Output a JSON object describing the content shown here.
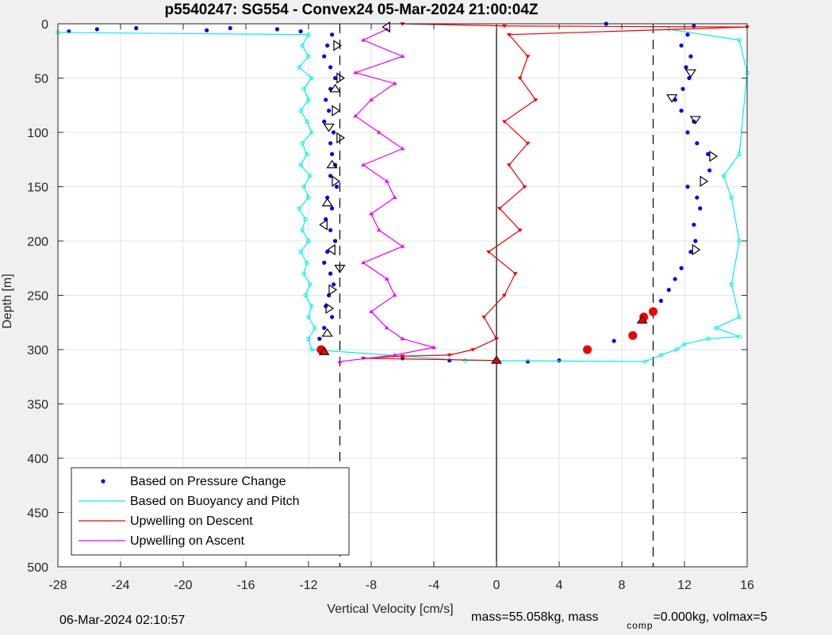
{
  "chart_data": {
    "type": "scatter",
    "title": "p5540247: SG554 - Convex24 05-Mar-2024 21:00:04Z",
    "xlabel": "Vertical Velocity [cm/s]",
    "ylabel": "Depth [m]",
    "xlim": [
      -28,
      16
    ],
    "ylim": [
      0,
      500
    ],
    "y_reversed": true,
    "grid": true,
    "xticks": [
      -28,
      -24,
      -20,
      -16,
      -12,
      -8,
      -4,
      0,
      4,
      8,
      12,
      16
    ],
    "yticks": [
      0,
      50,
      100,
      150,
      200,
      250,
      300,
      350,
      400,
      450,
      500
    ],
    "legend_position": "bottom-left",
    "reference_lines": {
      "solid_x": 0,
      "dashed_x": [
        -10,
        10
      ]
    },
    "series": [
      {
        "name": "Based on Pressure Change",
        "style": "dots",
        "color": "#0000ee",
        "points": [
          [
            -27.3,
            7
          ],
          [
            -25.5,
            5
          ],
          [
            -23,
            4
          ],
          [
            -18.5,
            6
          ],
          [
            -17,
            4
          ],
          [
            -14,
            5
          ],
          [
            -12.5,
            7
          ],
          [
            -10.5,
            10
          ],
          [
            -10.8,
            20
          ],
          [
            -11.0,
            30
          ],
          [
            -10.6,
            40
          ],
          [
            -10.3,
            50
          ],
          [
            -10.6,
            60
          ],
          [
            -10.9,
            70
          ],
          [
            -10.7,
            80
          ],
          [
            -11.0,
            90
          ],
          [
            -10.4,
            100
          ],
          [
            -10.6,
            110
          ],
          [
            -10.5,
            120
          ],
          [
            -10.3,
            130
          ],
          [
            -10.6,
            140
          ],
          [
            -10.2,
            150
          ],
          [
            -10.8,
            160
          ],
          [
            -10.5,
            170
          ],
          [
            -10.9,
            180
          ],
          [
            -10.6,
            190
          ],
          [
            -10.3,
            200
          ],
          [
            -10.8,
            210
          ],
          [
            -11.0,
            220
          ],
          [
            -10.6,
            230
          ],
          [
            -10.4,
            240
          ],
          [
            -10.7,
            250
          ],
          [
            -10.9,
            260
          ],
          [
            -10.5,
            270
          ],
          [
            -11.0,
            280
          ],
          [
            -11.3,
            290
          ],
          [
            -11.0,
            300
          ],
          [
            -6.0,
            308
          ],
          [
            -3.0,
            310
          ],
          [
            0.0,
            311
          ],
          [
            2.0,
            311
          ],
          [
            4.0,
            310
          ],
          [
            5.8,
            300
          ],
          [
            7.5,
            292
          ],
          [
            8.7,
            285
          ],
          [
            9.3,
            272
          ],
          [
            10.0,
            265
          ],
          [
            10.5,
            255
          ],
          [
            11.0,
            245
          ],
          [
            11.4,
            235
          ],
          [
            11.8,
            225
          ],
          [
            12.4,
            210
          ],
          [
            12.7,
            200
          ],
          [
            12.6,
            185
          ],
          [
            13.0,
            170
          ],
          [
            12.8,
            160
          ],
          [
            12.2,
            150
          ],
          [
            13.6,
            135
          ],
          [
            13.5,
            120
          ],
          [
            12.8,
            110
          ],
          [
            12.2,
            100
          ],
          [
            12.6,
            90
          ],
          [
            11.8,
            80
          ],
          [
            11.4,
            70
          ],
          [
            11.9,
            60
          ],
          [
            12.3,
            50
          ],
          [
            12.1,
            40
          ],
          [
            12.4,
            30
          ],
          [
            11.8,
            20
          ],
          [
            12.2,
            10
          ],
          [
            12.6,
            2
          ],
          [
            7.0,
            0
          ]
        ]
      },
      {
        "name": "Based on Buoyancy and Pitch",
        "style": "line-with-dots",
        "color": "#00eeee",
        "points": [
          [
            -28,
            8
          ],
          [
            -12.0,
            10
          ],
          [
            -12.4,
            20
          ],
          [
            -12.0,
            30
          ],
          [
            -12.6,
            40
          ],
          [
            -11.8,
            50
          ],
          [
            -12.3,
            60
          ],
          [
            -12.0,
            70
          ],
          [
            -12.5,
            80
          ],
          [
            -12.1,
            90
          ],
          [
            -11.8,
            100
          ],
          [
            -12.4,
            110
          ],
          [
            -12.1,
            120
          ],
          [
            -12.5,
            130
          ],
          [
            -11.9,
            140
          ],
          [
            -12.3,
            150
          ],
          [
            -12.0,
            160
          ],
          [
            -12.6,
            170
          ],
          [
            -12.2,
            180
          ],
          [
            -12.4,
            190
          ],
          [
            -12.0,
            200
          ],
          [
            -12.5,
            210
          ],
          [
            -12.1,
            220
          ],
          [
            -12.3,
            230
          ],
          [
            -11.9,
            240
          ],
          [
            -12.2,
            250
          ],
          [
            -11.8,
            260
          ],
          [
            -12.0,
            270
          ],
          [
            -11.6,
            280
          ],
          [
            -12.0,
            290
          ],
          [
            -11.8,
            300
          ],
          [
            -2.0,
            310
          ],
          [
            9.5,
            311
          ],
          [
            10.5,
            305
          ],
          [
            11.5,
            300
          ],
          [
            12.0,
            295
          ],
          [
            13.5,
            290
          ],
          [
            15.5,
            288
          ],
          [
            14.0,
            280
          ],
          [
            15.5,
            270
          ],
          [
            15.0,
            240
          ],
          [
            15.5,
            200
          ],
          [
            15.0,
            160
          ],
          [
            14.5,
            140
          ],
          [
            15.5,
            120
          ],
          [
            16.0,
            45
          ],
          [
            15.5,
            15
          ],
          [
            11.0,
            5
          ]
        ]
      },
      {
        "name": "Upwelling on Descent",
        "style": "line-with-down-triangles",
        "color": "#ee0000",
        "points": [
          [
            -6.0,
            0
          ],
          [
            0.5,
            2
          ],
          [
            16.0,
            3
          ],
          [
            0.8,
            10
          ],
          [
            2.0,
            30
          ],
          [
            1.5,
            50
          ],
          [
            2.5,
            70
          ],
          [
            0.5,
            90
          ],
          [
            2.0,
            110
          ],
          [
            0.8,
            130
          ],
          [
            1.8,
            150
          ],
          [
            0.2,
            170
          ],
          [
            1.5,
            190
          ],
          [
            -0.5,
            210
          ],
          [
            1.2,
            230
          ],
          [
            0.5,
            250
          ],
          [
            -0.8,
            270
          ],
          [
            0.0,
            290
          ],
          [
            -1.5,
            300
          ],
          [
            -3.0,
            305
          ],
          [
            -6.0,
            306
          ],
          [
            -8.5,
            308
          ],
          [
            0.0,
            310
          ]
        ]
      },
      {
        "name": "Upwelling on Ascent",
        "style": "line-with-up-triangles",
        "color": "#ee00ee",
        "points": [
          [
            -7.0,
            5
          ],
          [
            -8.5,
            15
          ],
          [
            -6.0,
            30
          ],
          [
            -9.0,
            45
          ],
          [
            -6.5,
            55
          ],
          [
            -8.0,
            70
          ],
          [
            -9.0,
            85
          ],
          [
            -7.5,
            100
          ],
          [
            -6.0,
            115
          ],
          [
            -8.5,
            130
          ],
          [
            -7.0,
            145
          ],
          [
            -6.5,
            160
          ],
          [
            -8.0,
            175
          ],
          [
            -7.5,
            190
          ],
          [
            -6.0,
            205
          ],
          [
            -8.5,
            220
          ],
          [
            -7.0,
            235
          ],
          [
            -6.5,
            250
          ],
          [
            -8.0,
            265
          ],
          [
            -7.0,
            280
          ],
          [
            -6.0,
            290
          ],
          [
            -4.0,
            298
          ],
          [
            -6.5,
            305
          ],
          [
            -10.0,
            311
          ]
        ]
      }
    ],
    "markers": [
      {
        "type": "red-circle",
        "points": [
          [
            -11.2,
            300
          ],
          [
            5.8,
            300
          ],
          [
            8.7,
            287
          ],
          [
            10.0,
            265
          ],
          [
            9.4,
            270
          ]
        ]
      },
      {
        "type": "red-triangle",
        "points": [
          [
            0.0,
            310
          ],
          [
            -11.0,
            302
          ],
          [
            9.3,
            273
          ]
        ]
      },
      {
        "type": "open-triangle-left",
        "points": [
          [
            -7.0,
            3
          ],
          [
            -10.5,
            208
          ],
          [
            -11.0,
            185
          ]
        ]
      },
      {
        "type": "open-triangle-right",
        "points": [
          [
            -10.2,
            20
          ],
          [
            -10.0,
            50
          ],
          [
            -10.3,
            80
          ],
          [
            -10.0,
            105
          ],
          [
            -10.3,
            145
          ],
          [
            -10.5,
            245
          ],
          [
            -10.7,
            262
          ],
          [
            13.8,
            122
          ],
          [
            13.2,
            145
          ],
          [
            12.7,
            208
          ]
        ]
      },
      {
        "type": "open-triangle-up",
        "points": [
          [
            -10.3,
            60
          ],
          [
            -10.5,
            130
          ],
          [
            -10.8,
            165
          ],
          [
            -10.8,
            285
          ]
        ]
      },
      {
        "type": "open-triangle-down",
        "points": [
          [
            -10.7,
            95
          ],
          [
            -10.0,
            225
          ],
          [
            12.7,
            88
          ],
          [
            12.4,
            45
          ],
          [
            11.2,
            68
          ]
        ]
      }
    ]
  },
  "footer": {
    "timestamp": "06-Mar-2024 02:10:57",
    "mass_text_main": "mass=55.058kg, mass",
    "mass_text_sub": "comp",
    "mass_text_tail": "=0.000kg, volmax=5"
  }
}
